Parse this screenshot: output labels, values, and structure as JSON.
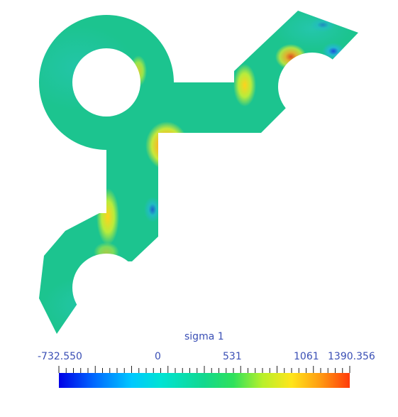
{
  "legend": {
    "title": "sigma 1",
    "min_label": "-732.550",
    "tick_labels": [
      "0",
      "531",
      "1061"
    ],
    "max_label": "1390.356"
  },
  "colors": {
    "part_base": "#1cc48f",
    "label_text": "#3a4fb5",
    "colormap": [
      "#0000e6",
      "#00a2ff",
      "#00e3d4",
      "#12d88d",
      "#2ee15b",
      "#b8f02a",
      "#ffe51a",
      "#ff9a12",
      "#ff3b0a"
    ]
  }
}
